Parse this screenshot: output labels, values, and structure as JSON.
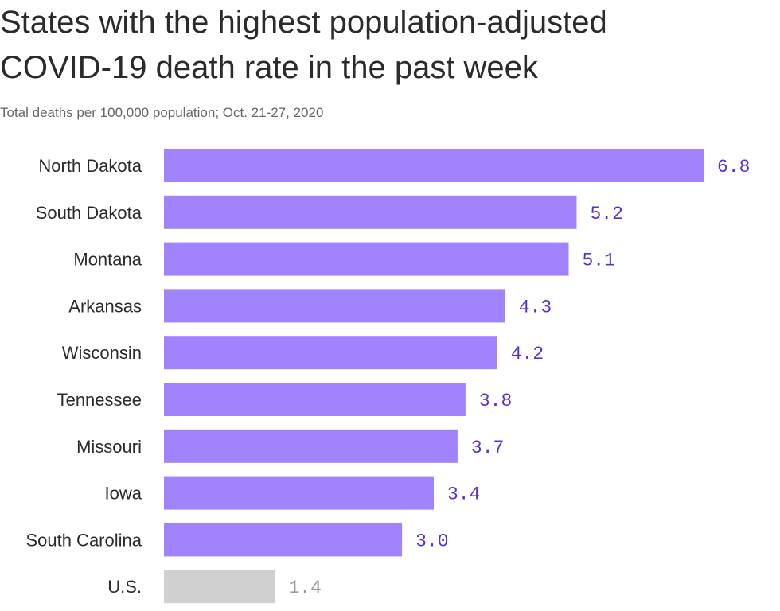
{
  "title_line1": "States with the highest population-adjusted",
  "title_line2": "COVID-19 death rate in the past week",
  "subtitle": "Total deaths per 100,000 population; Oct. 21-27, 2020",
  "colors": {
    "bar": "#a182ff",
    "bar_us": "#d0d0d0",
    "value_label": "#5a2fd6",
    "value_label_us": "#999999"
  },
  "chart_data": {
    "type": "bar",
    "orientation": "horizontal",
    "title": "States with the highest population-adjusted COVID-19 death rate in the past week",
    "subtitle": "Total deaths per 100,000 population; Oct. 21-27, 2020",
    "categories": [
      "North Dakota",
      "South Dakota",
      "Montana",
      "Arkansas",
      "Wisconsin",
      "Tennessee",
      "Missouri",
      "Iowa",
      "South Carolina",
      "U.S."
    ],
    "values": [
      6.8,
      5.2,
      5.1,
      4.3,
      4.2,
      3.8,
      3.7,
      3.4,
      3.0,
      1.4
    ],
    "value_labels": [
      "6.8",
      "5.2",
      "5.1",
      "4.3",
      "4.2",
      "3.8",
      "3.7",
      "3.4",
      "3.0",
      "1.4"
    ],
    "highlight_category": "U.S.",
    "xlim": [
      0,
      6.8
    ],
    "grid": false,
    "legend": "none"
  }
}
